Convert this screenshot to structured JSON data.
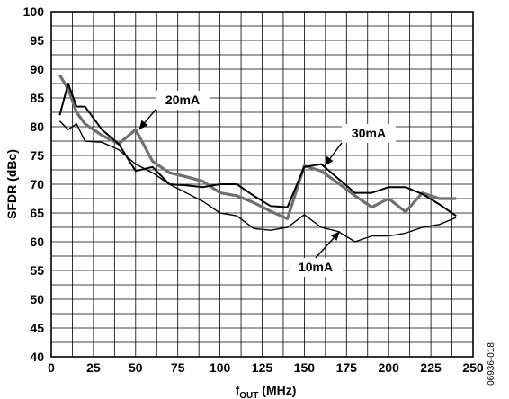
{
  "chart_data": {
    "type": "line",
    "ylabel": "SFDR (dBc)",
    "xlabel": {
      "main": "f",
      "sub": "OUT",
      "unit": " (MHz)"
    },
    "xlim": [
      0,
      250
    ],
    "ylim": [
      40,
      100
    ],
    "x_ticks": [
      0,
      25,
      50,
      75,
      100,
      125,
      150,
      175,
      200,
      225,
      250
    ],
    "y_ticks": [
      40,
      45,
      50,
      55,
      60,
      65,
      70,
      75,
      80,
      85,
      90,
      95,
      100
    ],
    "grid": true,
    "figure_code": "06936-018",
    "series": [
      {
        "name": "20mA",
        "color": "#707070",
        "x": [
          5,
          10,
          15,
          20,
          30,
          40,
          50,
          60,
          70,
          80,
          90,
          100,
          110,
          120,
          130,
          140,
          150,
          160,
          170,
          180,
          190,
          200,
          210,
          220,
          230,
          240
        ],
        "y": [
          89,
          86.5,
          82.5,
          80.5,
          78.5,
          77,
          79.5,
          74,
          72,
          71.3,
          70.5,
          68.5,
          68,
          66.8,
          65.3,
          64,
          73.2,
          72.3,
          70.2,
          68,
          66,
          67.5,
          65.2,
          68.5,
          67.5,
          67.5
        ]
      },
      {
        "name": "30mA",
        "color": "#000000",
        "x": [
          5,
          10,
          15,
          20,
          30,
          40,
          50,
          60,
          70,
          80,
          90,
          100,
          110,
          120,
          130,
          140,
          150,
          160,
          170,
          180,
          190,
          200,
          210,
          220,
          230,
          240
        ],
        "y": [
          82,
          87.5,
          83.5,
          83.5,
          79.5,
          77,
          72.3,
          73,
          70,
          69.8,
          69.5,
          70,
          70,
          68,
          66.2,
          66,
          73,
          73.5,
          71,
          68.5,
          68.5,
          69.5,
          69.5,
          68.3,
          66.5,
          64.5
        ]
      },
      {
        "name": "10mA",
        "color": "#000000",
        "x": [
          5,
          10,
          15,
          20,
          30,
          40,
          50,
          60,
          70,
          80,
          90,
          100,
          110,
          120,
          130,
          140,
          150,
          160,
          170,
          180,
          190,
          200,
          210,
          220,
          230,
          240
        ],
        "y": [
          81,
          79.5,
          80.5,
          77.5,
          77.3,
          76,
          73.5,
          72,
          70,
          68.5,
          67,
          65,
          64.5,
          62.3,
          62,
          62.5,
          64.7,
          62.5,
          61.8,
          60,
          61,
          61,
          61.5,
          62.5,
          63,
          64.2
        ]
      }
    ]
  }
}
